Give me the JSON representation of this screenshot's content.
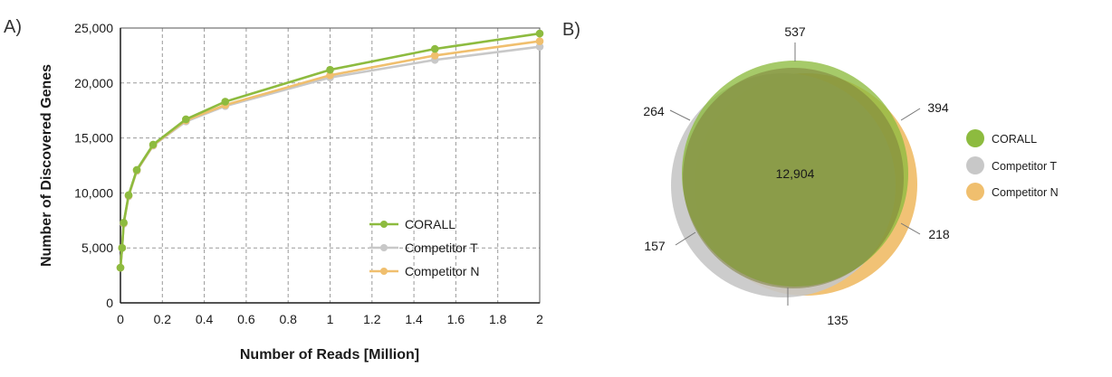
{
  "panels": {
    "a_label": "A)",
    "b_label": "B)"
  },
  "chart_data": [
    {
      "type": "line",
      "xlabel": "Number of Reads [Million]",
      "ylabel": "Number of Discovered Genes",
      "xlim": [
        0,
        2
      ],
      "ylim": [
        0,
        25000
      ],
      "x_ticks": [
        "0",
        "0.2",
        "0.4",
        "0.6",
        "0.8",
        "1",
        "1.2",
        "1.4",
        "1.6",
        "1.8",
        "2"
      ],
      "y_ticks": [
        "0",
        "5,000",
        "10,000",
        "15,000",
        "20,000",
        "25,000"
      ],
      "grid": true,
      "legend_position": "bottom-right",
      "series": [
        {
          "name": "CORALL",
          "color": "#8dbb3f",
          "x": [
            0,
            0.0078,
            0.0156,
            0.039,
            0.078,
            0.156,
            0.3125,
            0.5,
            1,
            1.5,
            2
          ],
          "y": [
            3200,
            5000,
            7300,
            9800,
            12100,
            14400,
            16700,
            18300,
            21200,
            23100,
            24500
          ]
        },
        {
          "name": "Competitor T",
          "color": "#c8c8c8",
          "x": [
            0,
            0.0078,
            0.0156,
            0.039,
            0.078,
            0.156,
            0.3125,
            0.5,
            1,
            1.5,
            2
          ],
          "y": [
            3200,
            5000,
            7200,
            9700,
            12000,
            14300,
            16500,
            17900,
            20500,
            22100,
            23300
          ]
        },
        {
          "name": "Competitor N",
          "color": "#f0bf6e",
          "x": [
            0,
            0.0078,
            0.0156,
            0.039,
            0.078,
            0.156,
            0.3125,
            0.5,
            1,
            1.5,
            2
          ],
          "y": [
            3200,
            5000,
            7250,
            9750,
            12050,
            14350,
            16600,
            18000,
            20700,
            22500,
            23800
          ]
        }
      ]
    },
    {
      "type": "venn",
      "sets": [
        {
          "name": "CORALL",
          "color": "#8dbb3f"
        },
        {
          "name": "Competitor T",
          "color": "#c8c8c8"
        },
        {
          "name": "Competitor N",
          "color": "#f0bf6e"
        }
      ],
      "regions": {
        "all_three": "12,904",
        "corall_only": "537",
        "corall_and_t": "264",
        "corall_and_n": "394",
        "t_only": "157",
        "n_only": "218",
        "t_and_n": "135"
      }
    }
  ]
}
